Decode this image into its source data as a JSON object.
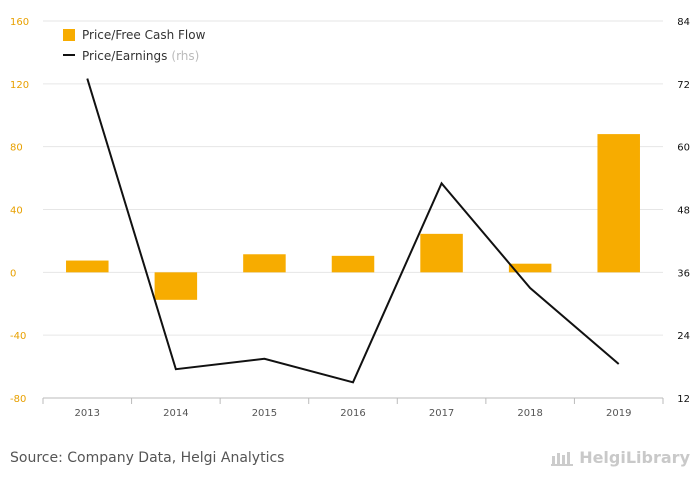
{
  "chart_data": {
    "type": "bar",
    "categories": [
      "2013",
      "2014",
      "2015",
      "2016",
      "2017",
      "2018",
      "2019"
    ],
    "series": [
      {
        "name": "Price/Free Cash Flow",
        "type": "bar",
        "axis": "left",
        "color": "#F7AC00",
        "values": [
          7.5,
          -17.5,
          11.5,
          10.5,
          24.5,
          5.5,
          88
        ]
      },
      {
        "name": "Price/Earnings",
        "name_suffix": "(rhs)",
        "type": "line",
        "axis": "right",
        "color": "#111111",
        "values": [
          73,
          17.5,
          19.5,
          15,
          53,
          33,
          18.5
        ]
      }
    ],
    "yaxis_left": {
      "ylim": [
        -80,
        160
      ],
      "ticks": [
        "-80",
        "-40",
        "0",
        "40",
        "80",
        "120",
        "160"
      ],
      "color": "#E8A000"
    },
    "yaxis_right": {
      "ylim": [
        12,
        84
      ],
      "ticks": [
        "12",
        "24",
        "36",
        "48",
        "60",
        "72",
        "84"
      ],
      "color": "#111111"
    },
    "title": "",
    "xlabel": "",
    "ylabel": "",
    "grid": true,
    "legend": "top-left"
  },
  "footer": {
    "source": "Source: Company Data, Helgi Analytics",
    "brand": "HelgiLibrary"
  }
}
